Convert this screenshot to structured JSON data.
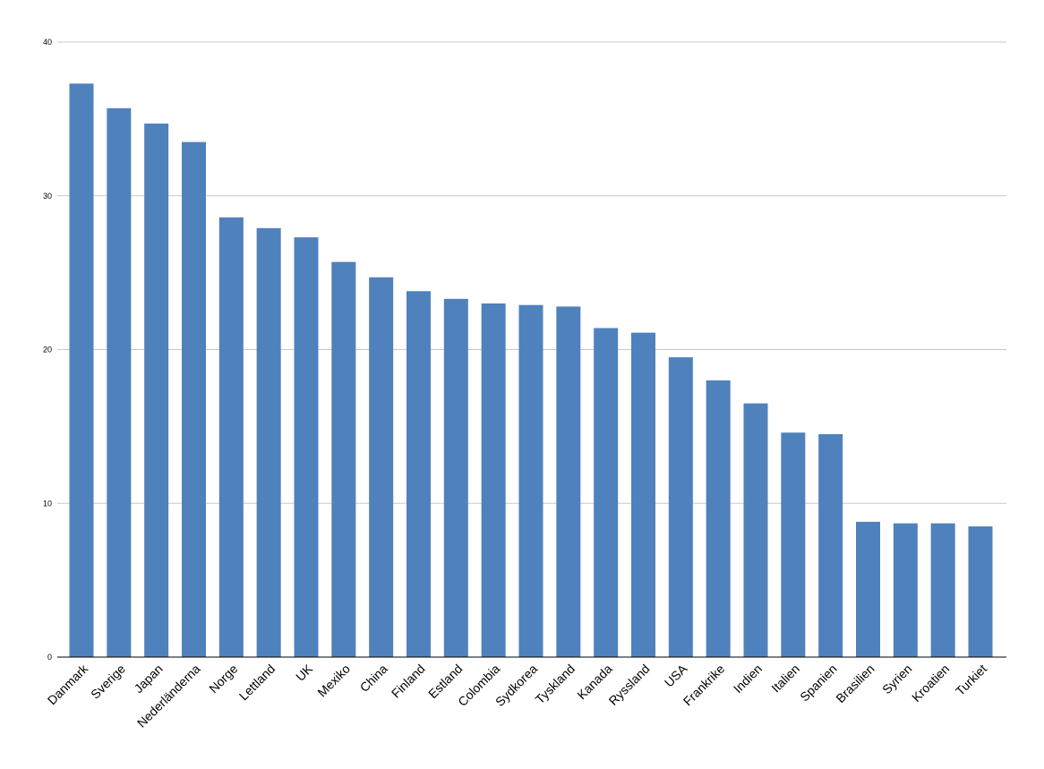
{
  "chart_data": {
    "type": "bar",
    "categories": [
      "Danmark",
      "Sverige",
      "Japan",
      "Nederländerna",
      "Norge",
      "Lettland",
      "UK",
      "Mexiko",
      "China",
      "Finland",
      "Estland",
      "Colombia",
      "Sydkorea",
      "Tyskland",
      "Kanada",
      "Ryssland",
      "USA",
      "Frankrike",
      "Indien",
      "Italien",
      "Spanien",
      "Brasilien",
      "Syrien",
      "Kroatien",
      "Turkiet"
    ],
    "values": [
      37.3,
      35.7,
      34.7,
      33.5,
      28.6,
      27.9,
      27.3,
      25.7,
      24.7,
      23.8,
      23.3,
      23.0,
      22.9,
      22.8,
      21.4,
      21.1,
      19.5,
      18.0,
      16.5,
      14.6,
      14.5,
      8.8,
      8.7,
      8.7,
      8.5
    ],
    "title": "",
    "xlabel": "",
    "ylabel": "",
    "ylim": [
      0,
      40
    ],
    "yticks": [
      "0",
      "10",
      "20",
      "30",
      "40"
    ],
    "grid": true,
    "legend": "none",
    "bar_color": "#4f81bd",
    "grid_color": "#c8c8c8",
    "axis_color": "#000000"
  }
}
